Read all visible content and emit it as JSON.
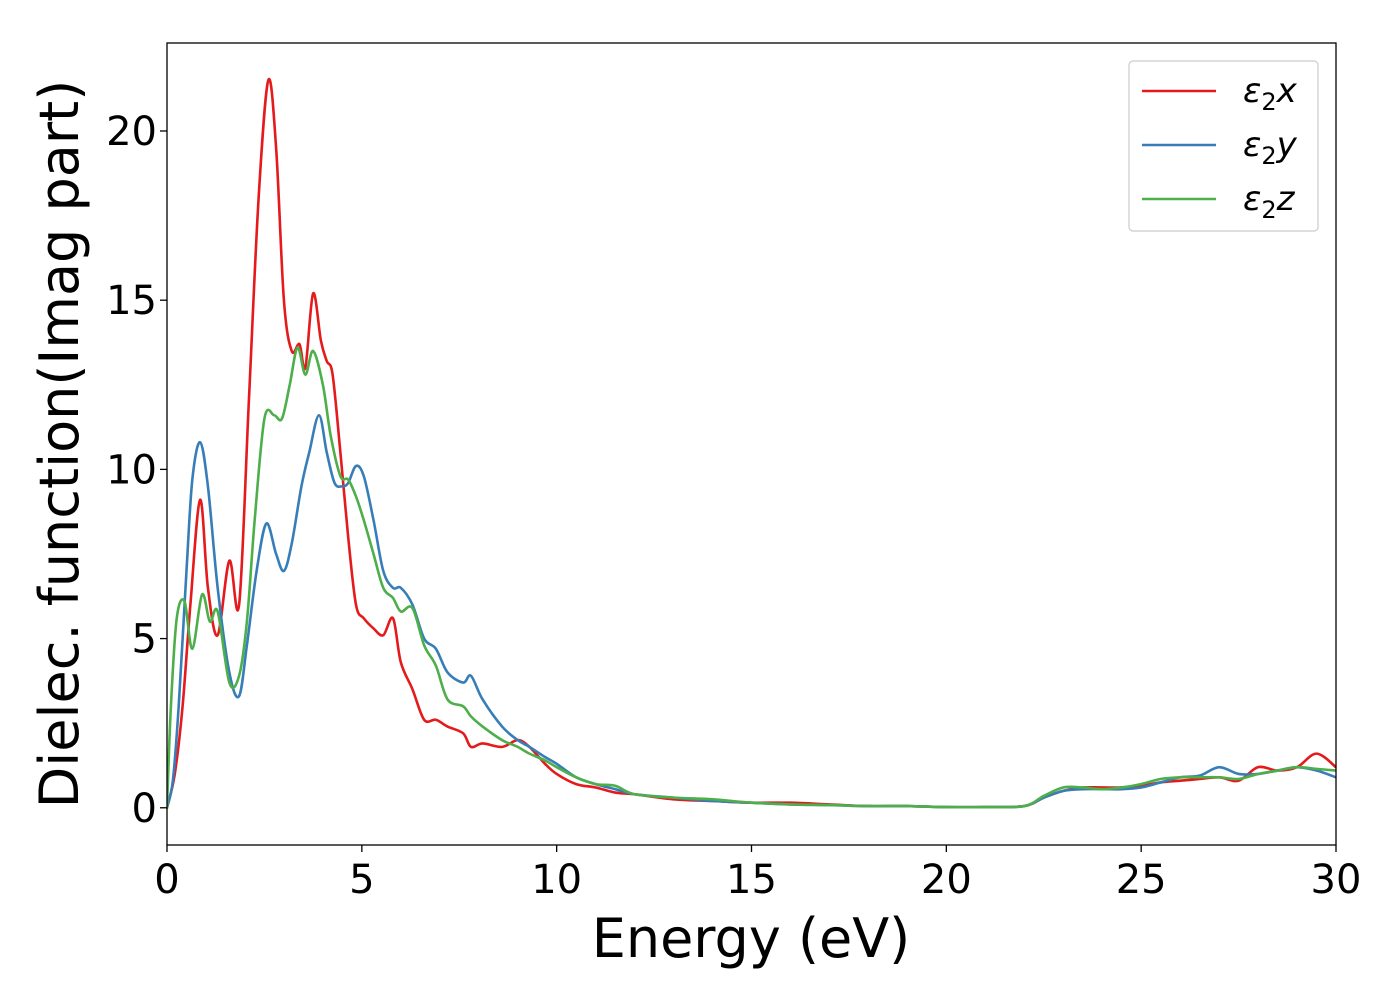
{
  "chart_data": {
    "type": "line",
    "xlabel": "Energy (eV)",
    "ylabel": "Dielec. function(Imag part)",
    "xlim": [
      0,
      30
    ],
    "ylim": [
      -1.1,
      22.6
    ],
    "xticks": [
      0,
      5,
      10,
      15,
      20,
      25,
      30
    ],
    "yticks": [
      0,
      5,
      10,
      15,
      20
    ],
    "grid": false,
    "legend_position": "top-right",
    "series": [
      {
        "name": "ε₂x",
        "legend_base": "ε",
        "legend_sub": "2",
        "legend_tail": "x",
        "color": "#e41a1c",
        "x": [
          0,
          0.2,
          0.4,
          0.6,
          0.85,
          1.05,
          1.3,
          1.6,
          1.85,
          2.1,
          2.35,
          2.6,
          2.8,
          3.0,
          3.2,
          3.4,
          3.55,
          3.75,
          3.95,
          4.1,
          4.25,
          4.45,
          4.65,
          4.85,
          5.05,
          5.3,
          5.55,
          5.8,
          6.0,
          6.3,
          6.6,
          6.9,
          7.2,
          7.6,
          7.8,
          8.1,
          8.6,
          9.0,
          9.3,
          9.7,
          10.0,
          10.5,
          11.0,
          11.5,
          12.0,
          13.0,
          14.0,
          15.0,
          16.0,
          17.0,
          18.0,
          19.0,
          20.0,
          21.0,
          22.0,
          22.5,
          23.0,
          23.5,
          24.0,
          24.5,
          25.0,
          25.5,
          26.0,
          26.5,
          27.0,
          27.5,
          28.0,
          28.5,
          29.0,
          29.5,
          30.0
        ],
        "y": [
          0,
          1.0,
          3.0,
          6.0,
          9.1,
          6.5,
          5.1,
          7.3,
          6.0,
          12.0,
          18.0,
          21.5,
          19.5,
          15.0,
          13.5,
          13.7,
          13.0,
          15.2,
          13.8,
          13.2,
          12.8,
          10.5,
          8.0,
          6.0,
          5.6,
          5.3,
          5.1,
          5.6,
          4.3,
          3.5,
          2.6,
          2.6,
          2.4,
          2.2,
          1.8,
          1.9,
          1.8,
          2.0,
          1.8,
          1.3,
          1.0,
          0.7,
          0.6,
          0.45,
          0.4,
          0.25,
          0.2,
          0.15,
          0.15,
          0.1,
          0.05,
          0.05,
          0.02,
          0.02,
          0.05,
          0.3,
          0.5,
          0.6,
          0.6,
          0.6,
          0.65,
          0.75,
          0.8,
          0.85,
          0.9,
          0.8,
          1.2,
          1.1,
          1.2,
          1.6,
          1.2
        ]
      },
      {
        "name": "ε₂y",
        "legend_base": "ε",
        "legend_sub": "2",
        "legend_tail": "y",
        "color": "#377eb8",
        "x": [
          0,
          0.15,
          0.3,
          0.5,
          0.65,
          0.85,
          1.05,
          1.3,
          1.6,
          1.85,
          2.05,
          2.3,
          2.55,
          2.8,
          3.0,
          3.2,
          3.45,
          3.65,
          3.9,
          4.1,
          4.3,
          4.5,
          4.65,
          4.85,
          5.05,
          5.3,
          5.55,
          5.8,
          6.0,
          6.3,
          6.6,
          6.9,
          7.2,
          7.6,
          7.8,
          8.1,
          8.6,
          9.0,
          9.3,
          9.7,
          10.0,
          10.5,
          11.0,
          11.5,
          12.0,
          13.0,
          14.0,
          15.0,
          16.0,
          17.0,
          18.0,
          19.0,
          20.0,
          21.0,
          22.0,
          22.5,
          23.0,
          23.5,
          24.0,
          24.5,
          25.0,
          25.5,
          26.0,
          26.5,
          27.0,
          27.5,
          28.0,
          28.5,
          29.0,
          29.5,
          30.0
        ],
        "y": [
          0,
          0.8,
          3.0,
          7.0,
          9.7,
          10.8,
          9.5,
          6.5,
          4.0,
          3.3,
          4.8,
          7.0,
          8.4,
          7.5,
          7.0,
          7.8,
          9.5,
          10.5,
          11.6,
          10.5,
          9.6,
          9.5,
          9.6,
          10.1,
          9.8,
          8.5,
          7.0,
          6.5,
          6.5,
          6.0,
          5.0,
          4.7,
          4.0,
          3.7,
          3.9,
          3.2,
          2.4,
          2.0,
          1.8,
          1.5,
          1.3,
          0.9,
          0.7,
          0.55,
          0.4,
          0.3,
          0.2,
          0.15,
          0.1,
          0.08,
          0.05,
          0.05,
          0.02,
          0.02,
          0.05,
          0.3,
          0.5,
          0.55,
          0.55,
          0.55,
          0.6,
          0.75,
          0.9,
          0.95,
          1.2,
          1.0,
          1.0,
          1.1,
          1.2,
          1.1,
          0.9
        ]
      },
      {
        "name": "ε₂z",
        "legend_base": "ε",
        "legend_sub": "2",
        "legend_tail": "z",
        "color": "#4daf4a",
        "x": [
          0,
          0.1,
          0.25,
          0.45,
          0.65,
          0.9,
          1.1,
          1.3,
          1.6,
          1.85,
          2.05,
          2.25,
          2.5,
          2.75,
          2.95,
          3.15,
          3.35,
          3.55,
          3.75,
          4.0,
          4.2,
          4.45,
          4.65,
          4.85,
          5.05,
          5.3,
          5.55,
          5.8,
          6.0,
          6.3,
          6.6,
          6.9,
          7.2,
          7.6,
          7.8,
          8.1,
          8.6,
          9.0,
          9.3,
          9.7,
          10.0,
          10.5,
          11.0,
          11.5,
          12.0,
          13.0,
          14.0,
          15.0,
          16.0,
          17.0,
          18.0,
          19.0,
          20.0,
          21.0,
          22.0,
          22.5,
          23.0,
          23.5,
          24.0,
          24.5,
          25.0,
          25.5,
          26.0,
          26.5,
          27.0,
          27.5,
          28.0,
          28.5,
          29.0,
          29.5,
          30.0
        ],
        "y": [
          0,
          3.0,
          5.6,
          6.1,
          4.7,
          6.3,
          5.5,
          5.8,
          3.7,
          3.9,
          5.5,
          8.5,
          11.5,
          11.6,
          11.5,
          12.5,
          13.6,
          12.8,
          13.5,
          12.5,
          11.0,
          9.8,
          9.7,
          9.2,
          8.5,
          7.5,
          6.5,
          6.2,
          5.8,
          5.9,
          4.8,
          4.2,
          3.2,
          3.0,
          2.7,
          2.4,
          2.0,
          1.8,
          1.6,
          1.4,
          1.2,
          0.9,
          0.7,
          0.65,
          0.4,
          0.3,
          0.25,
          0.15,
          0.1,
          0.08,
          0.05,
          0.05,
          0.02,
          0.02,
          0.05,
          0.35,
          0.6,
          0.6,
          0.55,
          0.6,
          0.7,
          0.85,
          0.9,
          0.9,
          0.9,
          0.85,
          1.0,
          1.1,
          1.2,
          1.15,
          1.1
        ]
      }
    ]
  }
}
